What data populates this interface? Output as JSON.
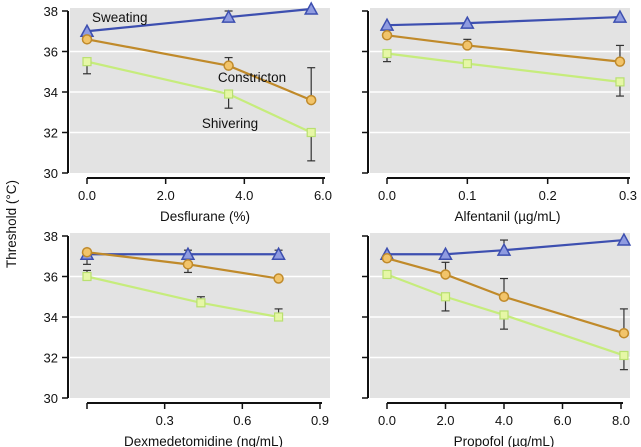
{
  "chart_data": {
    "type": "line",
    "ylabel": "Threshold (°C)",
    "shared_y": true,
    "ylim": [
      30,
      38
    ],
    "yticks": [
      30,
      32,
      34,
      36,
      38
    ],
    "grid": true,
    "series_styles": {
      "Sweating": {
        "color": "#3d4fb0",
        "fill": "#8f9be0",
        "marker": "triangle"
      },
      "Constriction": {
        "color": "#c08a2a",
        "fill": "#f2c46a",
        "marker": "circle"
      },
      "Shivering": {
        "color": "#c6ec7c",
        "fill": "#e6f7a6",
        "marker": "square"
      }
    },
    "panels": [
      {
        "xlabel": "Desflurane (%)",
        "xlim": [
          0,
          6.0
        ],
        "xticks": [
          0,
          2,
          4,
          6
        ],
        "xtick_labels": [
          "0.0",
          "2.0",
          "4.0",
          "6.0"
        ],
        "annotations": [
          {
            "text": "Sweating",
            "series": "Sweating"
          },
          {
            "text": "Constricton",
            "series": "Constriction"
          },
          {
            "text": "Shivering",
            "series": "Shivering"
          }
        ],
        "series": [
          {
            "name": "Sweating",
            "x": [
              0,
              3.6,
              5.7
            ],
            "y": [
              37.0,
              37.7,
              38.1
            ],
            "err_up": [
              0,
              0.3,
              0
            ],
            "err_down": [
              0,
              0,
              0
            ]
          },
          {
            "name": "Constriction",
            "x": [
              0,
              3.6,
              5.7
            ],
            "y": [
              36.6,
              35.3,
              33.6
            ],
            "err_up": [
              0,
              0.4,
              1.6
            ],
            "err_down": [
              0,
              0,
              0
            ]
          },
          {
            "name": "Shivering",
            "x": [
              0,
              3.6,
              5.7
            ],
            "y": [
              35.5,
              33.9,
              32.0
            ],
            "err_up": [
              0,
              0,
              0
            ],
            "err_down": [
              0.6,
              0.7,
              1.4
            ]
          }
        ]
      },
      {
        "xlabel": "Alfentanil (µg/mL)",
        "xlim": [
          0,
          0.3
        ],
        "xticks": [
          0,
          0.1,
          0.2,
          0.3
        ],
        "xtick_labels": [
          "0.0",
          "0.1",
          "0.2",
          "0.3"
        ],
        "annotations": [],
        "series": [
          {
            "name": "Sweating",
            "x": [
              0,
              0.1,
              0.29
            ],
            "y": [
              37.3,
              37.4,
              37.7
            ],
            "err_up": [
              0,
              0,
              0
            ],
            "err_down": [
              0,
              0,
              0
            ]
          },
          {
            "name": "Constriction",
            "x": [
              0,
              0.1,
              0.29
            ],
            "y": [
              36.8,
              36.3,
              35.5
            ],
            "err_up": [
              0,
              0.3,
              0.8
            ],
            "err_down": [
              0,
              0,
              0
            ]
          },
          {
            "name": "Shivering",
            "x": [
              0,
              0.1,
              0.29
            ],
            "y": [
              35.9,
              35.4,
              34.5
            ],
            "err_up": [
              0,
              0,
              0
            ],
            "err_down": [
              0.4,
              0,
              0.7
            ]
          }
        ]
      },
      {
        "xlabel": "Dexmedetomidine (ng/mL)",
        "xlim": [
          0,
          0.9
        ],
        "xticks": [
          0,
          0.3,
          0.6,
          0.9
        ],
        "xtick_labels": [
          "",
          "0.3",
          "0.6",
          "0.9"
        ],
        "annotations": [],
        "series": [
          {
            "name": "Sweating",
            "x": [
              0,
              0.39,
              0.74
            ],
            "y": [
              37.1,
              37.1,
              37.1
            ],
            "err_up": [
              0,
              0.2,
              0.2
            ],
            "err_down": [
              0.5,
              0,
              0
            ]
          },
          {
            "name": "Constriction",
            "x": [
              0,
              0.39,
              0.74
            ],
            "y": [
              37.2,
              36.6,
              35.9
            ],
            "err_up": [
              0,
              0,
              0
            ],
            "err_down": [
              0,
              0.4,
              0
            ]
          },
          {
            "name": "Shivering",
            "x": [
              0,
              0.44,
              0.74
            ],
            "y": [
              36.0,
              34.7,
              34.0
            ],
            "err_up": [
              0.3,
              0.3,
              0.4
            ],
            "err_down": [
              0,
              0,
              0
            ]
          }
        ]
      },
      {
        "xlabel": "Propofol (µg/mL)",
        "xlim": [
          0,
          8.0
        ],
        "xticks": [
          0,
          2,
          4,
          6,
          8
        ],
        "xtick_labels": [
          "0.0",
          "2.0",
          "4.0",
          "6.0",
          "8.0"
        ],
        "annotations": [],
        "series": [
          {
            "name": "Sweating",
            "x": [
              0,
              2.0,
              4.0,
              8.1
            ],
            "y": [
              37.1,
              37.1,
              37.3,
              37.8
            ],
            "err_up": [
              0,
              0,
              0.5,
              0
            ],
            "err_down": [
              0,
              0,
              0,
              0
            ]
          },
          {
            "name": "Constriction",
            "x": [
              0,
              2.0,
              4.0,
              8.1
            ],
            "y": [
              36.9,
              36.1,
              35.0,
              33.2
            ],
            "err_up": [
              0,
              0.6,
              0.9,
              1.2
            ],
            "err_down": [
              0,
              0,
              0,
              0
            ]
          },
          {
            "name": "Shivering",
            "x": [
              0,
              2.0,
              4.0,
              8.1
            ],
            "y": [
              36.1,
              35.0,
              34.1,
              32.1
            ],
            "err_up": [
              0,
              0,
              0,
              0
            ],
            "err_down": [
              0,
              0.7,
              0.7,
              0.7
            ]
          }
        ]
      }
    ]
  }
}
